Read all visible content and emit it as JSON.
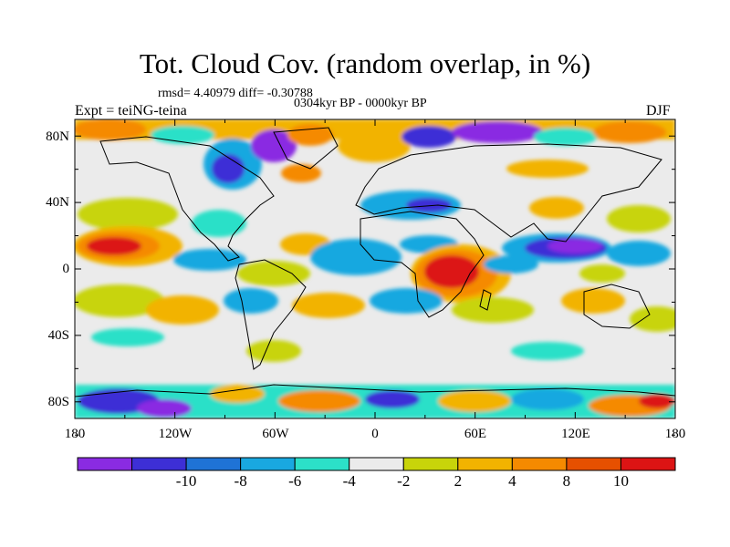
{
  "title": "Tot. Cloud Cov. (random overlap, in %)",
  "stats": "rmsd= 4.40979 diff= -0.30788",
  "period": "0304kyr BP - 0000kyr BP",
  "experiment": "Expt = teiNG-teina",
  "season": "DJF",
  "lat_labels": [
    "80N",
    "40N",
    "0",
    "40S",
    "80S"
  ],
  "lon_labels": [
    "180",
    "120W",
    "60W",
    "0",
    "60E",
    "120E",
    "180"
  ],
  "colorbar": {
    "labels": [
      "-10",
      "-8",
      "-6",
      "-4",
      "-2",
      "2",
      "4",
      "8",
      "10"
    ],
    "colors": [
      "#8a2be2",
      "#3d2fd6",
      "#1f73d6",
      "#19a8e0",
      "#2ce0c8",
      "#ebebeb",
      "#c8d40a",
      "#f2b300",
      "#f58a00",
      "#e65000",
      "#dc1414"
    ]
  },
  "colors": {
    "neutral": "#ebebeb",
    "coast": "#000000"
  }
}
